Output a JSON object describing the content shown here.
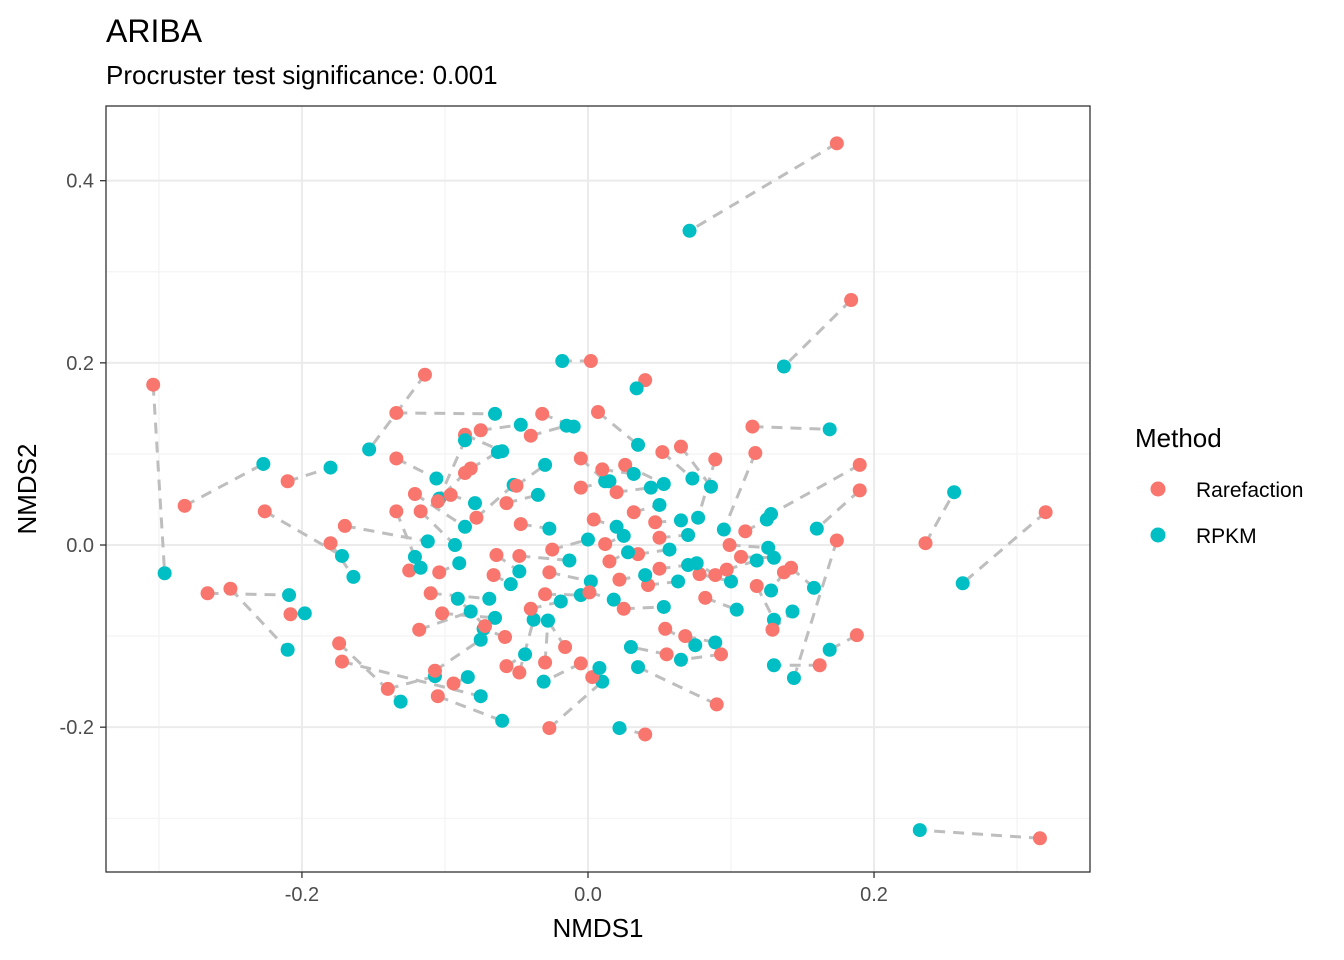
{
  "chart_data": {
    "type": "scatter",
    "title": "ARIBA",
    "subtitle": "Procruster test significance: 0.001",
    "xlabel": "NMDS1",
    "ylabel": "NMDS2",
    "xlim": [
      -0.337,
      0.351
    ],
    "ylim": [
      -0.359,
      0.482
    ],
    "xticks": [
      -0.2,
      0.0,
      0.2
    ],
    "xtick_labels": [
      "-0.2",
      "0.0",
      "0.2"
    ],
    "yticks": [
      -0.2,
      0.0,
      0.2,
      0.4
    ],
    "ytick_labels": [
      "-0.2",
      "0.0",
      "0.2",
      "0.4"
    ],
    "grid": true,
    "legend": {
      "title": "Method",
      "position": "right",
      "entries": [
        {
          "label": "Rarefaction",
          "color": "#F8766D"
        },
        {
          "label": "RPKM",
          "color": "#00BFC4"
        }
      ]
    },
    "connector_color": "#BEBEBE",
    "pairs": [
      [
        [
          0.174,
          0.441
        ],
        [
          0.071,
          0.345
        ]
      ],
      [
        [
          0.184,
          0.269
        ],
        [
          0.137,
          0.196
        ]
      ],
      [
        [
          0.32,
          0.036
        ],
        [
          0.262,
          -0.042
        ]
      ],
      [
        [
          0.236,
          0.002
        ],
        [
          0.256,
          0.058
        ]
      ],
      [
        [
          0.316,
          -0.322
        ],
        [
          0.232,
          -0.313
        ]
      ],
      [
        [
          0.002,
          0.202
        ],
        [
          -0.018,
          0.202
        ]
      ],
      [
        [
          0.04,
          0.181
        ],
        [
          0.034,
          0.172
        ]
      ],
      [
        [
          -0.304,
          0.176
        ],
        [
          -0.296,
          -0.031
        ]
      ],
      [
        [
          -0.282,
          0.043
        ],
        [
          -0.227,
          0.089
        ]
      ],
      [
        [
          -0.266,
          -0.053
        ],
        [
          -0.209,
          -0.055
        ]
      ],
      [
        [
          -0.25,
          -0.048
        ],
        [
          -0.21,
          -0.115
        ]
      ],
      [
        [
          -0.21,
          0.07
        ],
        [
          -0.18,
          0.085
        ]
      ],
      [
        [
          -0.226,
          0.037
        ],
        [
          -0.172,
          -0.012
        ]
      ],
      [
        [
          -0.208,
          -0.076
        ],
        [
          -0.198,
          -0.075
        ]
      ],
      [
        [
          -0.114,
          0.187
        ],
        [
          -0.153,
          0.105
        ]
      ],
      [
        [
          -0.134,
          0.145
        ],
        [
          -0.065,
          0.144
        ]
      ],
      [
        [
          0.115,
          0.13
        ],
        [
          0.169,
          0.127
        ]
      ],
      [
        [
          0.19,
          0.088
        ],
        [
          0.128,
          0.034
        ]
      ],
      [
        [
          0.19,
          0.06
        ],
        [
          0.16,
          0.018
        ]
      ],
      [
        [
          0.188,
          -0.099
        ],
        [
          0.169,
          -0.115
        ]
      ],
      [
        [
          0.174,
          0.005
        ],
        [
          0.144,
          -0.146
        ]
      ],
      [
        [
          0.162,
          -0.132
        ],
        [
          0.13,
          -0.132
        ]
      ],
      [
        [
          -0.174,
          -0.108
        ],
        [
          -0.131,
          -0.172
        ]
      ],
      [
        [
          -0.14,
          -0.158
        ],
        [
          -0.107,
          -0.144
        ]
      ],
      [
        [
          -0.172,
          -0.128
        ],
        [
          -0.075,
          -0.166
        ]
      ],
      [
        [
          -0.105,
          -0.166
        ],
        [
          -0.06,
          -0.193
        ]
      ],
      [
        [
          -0.027,
          -0.201
        ],
        [
          0.01,
          -0.15
        ]
      ],
      [
        [
          0.04,
          -0.208
        ],
        [
          0.022,
          -0.201
        ]
      ],
      [
        [
          0.09,
          -0.175
        ],
        [
          0.035,
          -0.134
        ]
      ],
      [
        [
          -0.18,
          0.002
        ],
        [
          -0.164,
          -0.035
        ]
      ],
      [
        [
          -0.17,
          0.021
        ],
        [
          -0.112,
          0.004
        ]
      ],
      [
        [
          -0.134,
          0.095
        ],
        [
          -0.106,
          0.073
        ]
      ],
      [
        [
          -0.134,
          0.037
        ],
        [
          -0.121,
          -0.013
        ]
      ],
      [
        [
          -0.086,
          0.121
        ],
        [
          -0.06,
          0.103
        ]
      ],
      [
        [
          -0.086,
          0.079
        ],
        [
          -0.104,
          0.051
        ]
      ],
      [
        [
          -0.105,
          0.048
        ],
        [
          -0.086,
          0.115
        ]
      ],
      [
        [
          -0.078,
          0.03
        ],
        [
          -0.052,
          0.066
        ]
      ],
      [
        [
          -0.075,
          0.126
        ],
        [
          -0.047,
          0.132
        ]
      ],
      [
        [
          -0.04,
          0.12
        ],
        [
          -0.015,
          0.131
        ]
      ],
      [
        [
          -0.032,
          0.144
        ],
        [
          -0.01,
          0.13
        ]
      ],
      [
        [
          -0.005,
          0.095
        ],
        [
          0.012,
          0.07
        ]
      ],
      [
        [
          0.007,
          0.146
        ],
        [
          0.035,
          0.11
        ]
      ],
      [
        [
          0.026,
          0.088
        ],
        [
          0.053,
          0.067
        ]
      ],
      [
        [
          0.052,
          0.102
        ],
        [
          0.073,
          0.073
        ]
      ],
      [
        [
          0.065,
          0.108
        ],
        [
          0.086,
          0.064
        ]
      ],
      [
        [
          0.089,
          0.094
        ],
        [
          0.077,
          0.03
        ]
      ],
      [
        [
          0.117,
          0.101
        ],
        [
          0.095,
          0.017
        ]
      ],
      [
        [
          -0.082,
          0.084
        ],
        [
          -0.063,
          0.102
        ]
      ],
      [
        [
          -0.096,
          0.055
        ],
        [
          -0.079,
          0.046
        ]
      ],
      [
        [
          -0.121,
          0.056
        ],
        [
          -0.086,
          0.02
        ]
      ],
      [
        [
          -0.117,
          0.037
        ],
        [
          -0.093,
          0.0
        ]
      ],
      [
        [
          -0.125,
          -0.028
        ],
        [
          -0.117,
          -0.025
        ]
      ],
      [
        [
          -0.104,
          -0.03
        ],
        [
          -0.09,
          -0.02
        ]
      ],
      [
        [
          -0.11,
          -0.053
        ],
        [
          -0.069,
          -0.059
        ]
      ],
      [
        [
          -0.102,
          -0.075
        ],
        [
          -0.065,
          -0.08
        ]
      ],
      [
        [
          -0.118,
          -0.093
        ],
        [
          -0.082,
          -0.073
        ]
      ],
      [
        [
          -0.107,
          -0.138
        ],
        [
          -0.075,
          -0.104
        ]
      ],
      [
        [
          -0.094,
          -0.152
        ],
        [
          -0.084,
          -0.145
        ]
      ],
      [
        [
          -0.057,
          -0.133
        ],
        [
          -0.044,
          -0.12
        ]
      ],
      [
        [
          -0.048,
          -0.14
        ],
        [
          -0.038,
          -0.082
        ]
      ],
      [
        [
          -0.03,
          -0.129
        ],
        [
          -0.028,
          -0.083
        ]
      ],
      [
        [
          -0.05,
          0.065
        ],
        [
          -0.03,
          0.088
        ]
      ],
      [
        [
          -0.057,
          0.046
        ],
        [
          -0.035,
          0.055
        ]
      ],
      [
        [
          -0.047,
          0.023
        ],
        [
          -0.027,
          0.018
        ]
      ],
      [
        [
          -0.048,
          -0.012
        ],
        [
          -0.013,
          -0.017
        ]
      ],
      [
        [
          -0.025,
          -0.005
        ],
        [
          0.0,
          0.006
        ]
      ],
      [
        [
          -0.027,
          -0.03
        ],
        [
          0.002,
          -0.04
        ]
      ],
      [
        [
          -0.03,
          -0.054
        ],
        [
          -0.005,
          -0.055
        ]
      ],
      [
        [
          0.001,
          -0.052
        ],
        [
          0.018,
          -0.06
        ]
      ],
      [
        [
          -0.005,
          0.063
        ],
        [
          0.015,
          0.07
        ]
      ],
      [
        [
          0.01,
          0.083
        ],
        [
          0.032,
          0.078
        ]
      ],
      [
        [
          0.02,
          0.058
        ],
        [
          0.044,
          0.063
        ]
      ],
      [
        [
          0.032,
          0.036
        ],
        [
          0.05,
          0.044
        ]
      ],
      [
        [
          0.047,
          0.025
        ],
        [
          0.065,
          0.027
        ]
      ],
      [
        [
          0.05,
          0.008
        ],
        [
          0.07,
          0.011
        ]
      ],
      [
        [
          0.035,
          -0.01
        ],
        [
          0.057,
          -0.005
        ]
      ],
      [
        [
          0.05,
          -0.026
        ],
        [
          0.07,
          -0.022
        ]
      ],
      [
        [
          0.042,
          -0.044
        ],
        [
          0.063,
          -0.04
        ]
      ],
      [
        [
          0.025,
          -0.07
        ],
        [
          0.053,
          -0.068
        ]
      ],
      [
        [
          0.054,
          -0.092
        ],
        [
          0.075,
          -0.11
        ]
      ],
      [
        [
          0.068,
          -0.1
        ],
        [
          0.089,
          -0.107
        ]
      ],
      [
        [
          0.078,
          -0.032
        ],
        [
          0.1,
          -0.04
        ]
      ],
      [
        [
          0.082,
          -0.058
        ],
        [
          0.104,
          -0.071
        ]
      ],
      [
        [
          0.097,
          -0.027
        ],
        [
          0.118,
          -0.017
        ]
      ],
      [
        [
          0.107,
          -0.013
        ],
        [
          0.13,
          -0.014
        ]
      ],
      [
        [
          0.11,
          0.015
        ],
        [
          0.125,
          0.028
        ]
      ],
      [
        [
          0.099,
          0.0
        ],
        [
          0.126,
          -0.003
        ]
      ],
      [
        [
          0.137,
          -0.03
        ],
        [
          0.128,
          -0.05
        ]
      ],
      [
        [
          0.142,
          -0.025
        ],
        [
          0.158,
          -0.047
        ]
      ],
      [
        [
          0.118,
          -0.045
        ],
        [
          0.13,
          -0.082
        ]
      ],
      [
        [
          0.129,
          -0.093
        ],
        [
          0.143,
          -0.073
        ]
      ],
      [
        [
          -0.005,
          -0.13
        ],
        [
          -0.031,
          -0.15
        ]
      ],
      [
        [
          0.003,
          -0.145
        ],
        [
          0.008,
          -0.135
        ]
      ],
      [
        [
          -0.016,
          -0.112
        ],
        [
          -0.028,
          -0.083
        ]
      ],
      [
        [
          -0.04,
          -0.07
        ],
        [
          -0.019,
          -0.062
        ]
      ],
      [
        [
          -0.058,
          -0.101
        ],
        [
          -0.073,
          -0.092
        ]
      ],
      [
        [
          -0.072,
          -0.089
        ],
        [
          -0.091,
          -0.059
        ]
      ],
      [
        [
          -0.066,
          -0.033
        ],
        [
          -0.054,
          -0.043
        ]
      ],
      [
        [
          -0.064,
          -0.011
        ],
        [
          -0.048,
          -0.029
        ]
      ],
      [
        [
          0.015,
          -0.018
        ],
        [
          0.028,
          -0.008
        ]
      ],
      [
        [
          0.004,
          0.028
        ],
        [
          0.02,
          0.02
        ]
      ],
      [
        [
          0.012,
          0.001
        ],
        [
          0.025,
          0.01
        ]
      ],
      [
        [
          0.022,
          -0.038
        ],
        [
          0.04,
          -0.033
        ]
      ],
      [
        [
          0.055,
          -0.12
        ],
        [
          0.03,
          -0.112
        ]
      ],
      [
        [
          0.093,
          -0.12
        ],
        [
          0.065,
          -0.126
        ]
      ],
      [
        [
          0.089,
          -0.033
        ],
        [
          0.076,
          -0.02
        ]
      ]
    ]
  }
}
